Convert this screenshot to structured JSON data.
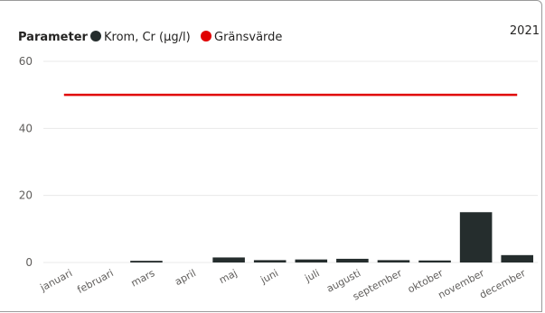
{
  "chart_data": {
    "type": "bar",
    "year_label": "2021",
    "legend": {
      "title": "Parameter",
      "items": [
        {
          "label": "Krom, Cr (µg/l)",
          "color": "#252d2d"
        },
        {
          "label": "Gränsvärde",
          "color": "#e00000"
        }
      ]
    },
    "categories": [
      "januari",
      "februari",
      "mars",
      "april",
      "maj",
      "juni",
      "juli",
      "augusti",
      "september",
      "oktober",
      "november",
      "december"
    ],
    "series": [
      {
        "name": "Krom, Cr (µg/l)",
        "type": "bar",
        "color": "#252d2d",
        "values": [
          null,
          null,
          0.5,
          null,
          1.5,
          0.7,
          0.9,
          1.1,
          0.7,
          0.6,
          15,
          2.2
        ]
      },
      {
        "name": "Gränsvärde",
        "type": "line",
        "color": "#e00000",
        "values": [
          50,
          50,
          50,
          50,
          50,
          50,
          50,
          50,
          50,
          50,
          50,
          50
        ]
      }
    ],
    "yticks": [
      "0",
      "20",
      "40",
      "60"
    ],
    "ylim": [
      0,
      60
    ],
    "grid": true
  }
}
